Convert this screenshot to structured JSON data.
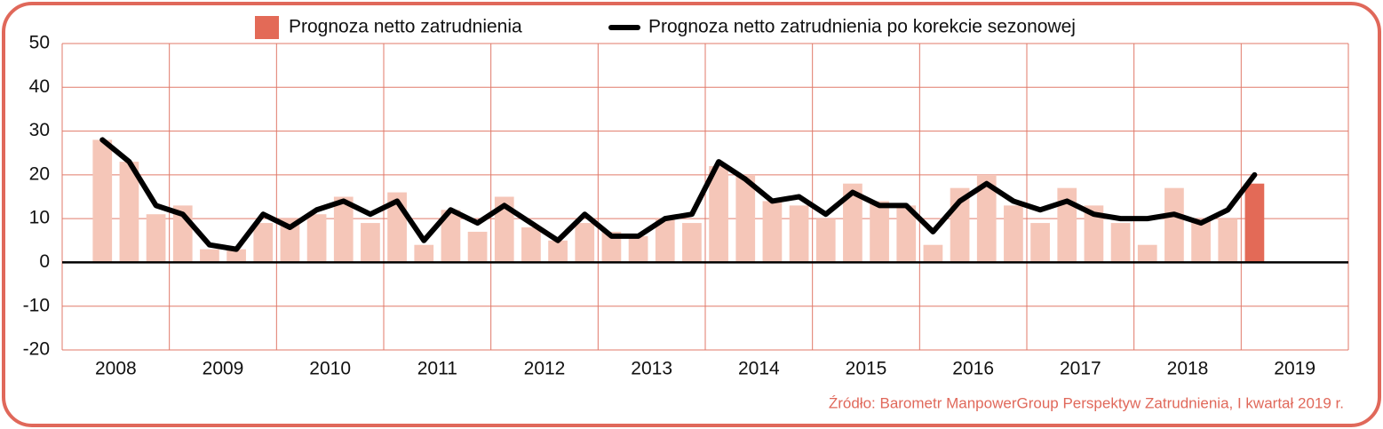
{
  "chart_data": {
    "type": "bar_line",
    "legend": [
      "Prognoza netto zatrudnienia",
      "Prognoza netto zatrudnienia po korekcie sezonowej"
    ],
    "source": "Źródło: Barometr ManpowerGroup Perspektyw Zatrudnienia, I kwartał 2019 r.",
    "x": [
      2008.375,
      2008.625,
      2008.875,
      2009.125,
      2009.375,
      2009.625,
      2009.875,
      2010.125,
      2010.375,
      2010.625,
      2010.875,
      2011.125,
      2011.375,
      2011.625,
      2011.875,
      2012.125,
      2012.375,
      2012.625,
      2012.875,
      2013.125,
      2013.375,
      2013.625,
      2013.875,
      2014.125,
      2014.375,
      2014.625,
      2014.875,
      2015.125,
      2015.375,
      2015.625,
      2015.875,
      2016.125,
      2016.375,
      2016.625,
      2016.875,
      2017.125,
      2017.375,
      2017.625,
      2017.875,
      2018.125,
      2018.375,
      2018.625,
      2018.875,
      2019.125
    ],
    "series": [
      {
        "name": "Prognoza netto zatrudnienia",
        "kind": "bar",
        "color": "#e36a57",
        "colors": [
          "#f5c6b8",
          "#f5c6b8",
          "#f5c6b8",
          "#f5c6b8",
          "#f5c6b8",
          "#f5c6b8",
          "#f5c6b8",
          "#f5c6b8",
          "#f5c6b8",
          "#f5c6b8",
          "#f5c6b8",
          "#f5c6b8",
          "#f5c6b8",
          "#f5c6b8",
          "#f5c6b8",
          "#f5c6b8",
          "#f5c6b8",
          "#f5c6b8",
          "#f5c6b8",
          "#f5c6b8",
          "#f5c6b8",
          "#f5c6b8",
          "#f5c6b8",
          "#f5c6b8",
          "#f5c6b8",
          "#f5c6b8",
          "#f5c6b8",
          "#f5c6b8",
          "#f5c6b8",
          "#f5c6b8",
          "#f5c6b8",
          "#f5c6b8",
          "#f5c6b8",
          "#f5c6b8",
          "#f5c6b8",
          "#f5c6b8",
          "#f5c6b8",
          "#f5c6b8",
          "#f5c6b8",
          "#f5c6b8",
          "#f5c6b8",
          "#f5c6b8",
          "#f5c6b8",
          "#e36a57"
        ],
        "values": [
          28,
          23,
          11,
          13,
          3,
          3,
          9,
          10,
          11,
          15,
          9,
          16,
          4,
          12,
          7,
          15,
          8,
          5,
          9,
          7,
          6,
          10,
          9,
          22,
          20,
          14,
          13,
          10,
          18,
          14,
          13,
          4,
          17,
          20,
          13,
          9,
          17,
          13,
          9,
          4,
          17,
          10,
          10,
          18
        ]
      },
      {
        "name": "Prognoza netto zatrudnienia po korekcie sezonowej",
        "kind": "line",
        "color": "#000000",
        "values": [
          28,
          23,
          13,
          11,
          4,
          3,
          11,
          8,
          12,
          14,
          11,
          14,
          5,
          12,
          9,
          13,
          9,
          5,
          11,
          6,
          6,
          10,
          11,
          23,
          19,
          14,
          15,
          11,
          16,
          13,
          13,
          7,
          14,
          18,
          14,
          12,
          14,
          11,
          10,
          10,
          11,
          9,
          12,
          20
        ]
      }
    ],
    "xlim": [
      2008,
      2020
    ],
    "xticks": [
      {
        "value": 2008.5,
        "label": "2008"
      },
      {
        "value": 2009.5,
        "label": "2009"
      },
      {
        "value": 2010.5,
        "label": "2010"
      },
      {
        "value": 2011.5,
        "label": "2011"
      },
      {
        "value": 2012.5,
        "label": "2012"
      },
      {
        "value": 2013.5,
        "label": "2013"
      },
      {
        "value": 2014.5,
        "label": "2014"
      },
      {
        "value": 2015.5,
        "label": "2015"
      },
      {
        "value": 2016.5,
        "label": "2016"
      },
      {
        "value": 2017.5,
        "label": "2017"
      },
      {
        "value": 2018.5,
        "label": "2018"
      },
      {
        "value": 2019.5,
        "label": "2019"
      }
    ],
    "ylim": [
      -20,
      50
    ],
    "yticks": [
      -20,
      -10,
      0,
      10,
      20,
      30,
      40,
      50
    ],
    "grid": true,
    "grid_color": "#e07a6a",
    "frame_color": "#e0685a"
  }
}
